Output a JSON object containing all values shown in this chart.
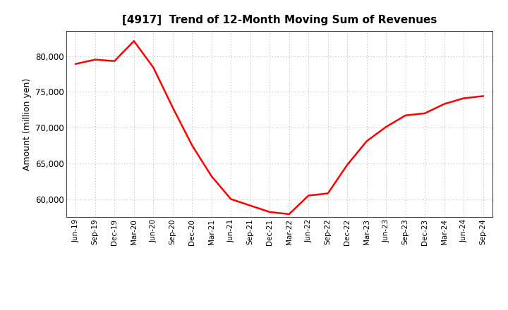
{
  "title": "[4917]  Trend of 12-Month Moving Sum of Revenues",
  "ylabel": "Amount (million yen)",
  "line_color": "#FF0000",
  "line_width": 1.8,
  "background_color": "#FFFFFF",
  "grid_color": "#AAAAAA",
  "ylim": [
    57500,
    83500
  ],
  "yticks": [
    60000,
    65000,
    70000,
    75000,
    80000
  ],
  "labels": [
    "Jun-19",
    "Sep-19",
    "Dec-19",
    "Mar-20",
    "Jun-20",
    "Sep-20",
    "Dec-20",
    "Mar-21",
    "Jun-21",
    "Sep-21",
    "Dec-21",
    "Mar-22",
    "Jun-22",
    "Sep-22",
    "Dec-22",
    "Mar-23",
    "Jun-23",
    "Sep-23",
    "Dec-23",
    "Mar-24",
    "Jun-24",
    "Sep-24"
  ],
  "values": [
    78900,
    79500,
    79300,
    82100,
    78400,
    72800,
    67500,
    63200,
    60000,
    59100,
    58200,
    57900,
    60500,
    60800,
    64800,
    68100,
    70100,
    71700,
    72000,
    73300,
    74100,
    74400
  ]
}
